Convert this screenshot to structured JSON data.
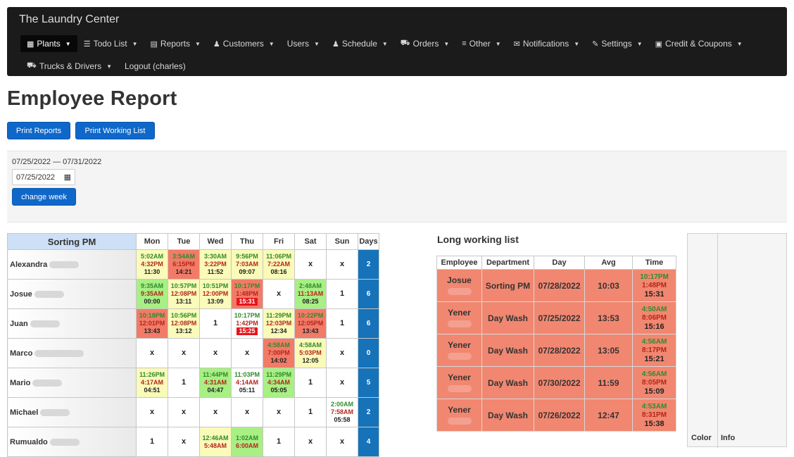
{
  "app": {
    "brand": "The Laundry Center"
  },
  "nav": {
    "row1": [
      {
        "label": "Plants",
        "icon": "▦",
        "active": true
      },
      {
        "label": "Todo List",
        "icon": "☰"
      },
      {
        "label": "Reports",
        "icon": "▤"
      },
      {
        "label": "Customers",
        "icon": "♟"
      },
      {
        "label": "Users",
        "icon": ""
      },
      {
        "label": "Schedule",
        "icon": "♟"
      },
      {
        "label": "Orders",
        "icon": "⛟"
      },
      {
        "label": "Other",
        "icon": "≡"
      },
      {
        "label": "Notifications",
        "icon": "✉"
      },
      {
        "label": "Settings",
        "icon": "✎"
      },
      {
        "label": "Credit & Coupons",
        "icon": "▣"
      }
    ],
    "row2": [
      {
        "label": "Trucks & Drivers",
        "icon": "⛟"
      },
      {
        "label": "Logout (charles)",
        "icon": ""
      }
    ]
  },
  "page": {
    "title": "Employee Report",
    "print_reports": "Print Reports",
    "print_working_list": "Print Working List",
    "date_range": "07/25/2022 — 07/31/2022",
    "date_value": "07/25/2022",
    "change_week": "change week"
  },
  "employee_table": {
    "department": "Sorting PM",
    "headers": [
      "Mon",
      "Tue",
      "Wed",
      "Thu",
      "Fri",
      "Sat",
      "Sun",
      "Days"
    ],
    "rows": [
      {
        "name": "Alexandra",
        "days": [
          {
            "c": "y",
            "in": "5:02AM",
            "out": "4:32PM",
            "dur": "11:30"
          },
          {
            "c": "r",
            "in": "3:54AM",
            "out": "6:15PM",
            "dur": "14:21"
          },
          {
            "c": "y",
            "in": "3:30AM",
            "out": "3:22PM",
            "dur": "11:52"
          },
          {
            "c": "y",
            "in": "9:56PM",
            "out": "7:03AM",
            "dur": "09:07"
          },
          {
            "c": "y",
            "in": "11:06PM",
            "out": "7:22AM",
            "dur": "08:16"
          },
          {
            "x": "x"
          },
          {
            "x": "x"
          }
        ],
        "total": "2"
      },
      {
        "name": "Josue",
        "days": [
          {
            "c": "g",
            "in": "9:35AM",
            "out": "9:35AM",
            "dur": "00:00"
          },
          {
            "c": "y",
            "in": "10:57PM",
            "out": "12:08PM",
            "dur": "13:11"
          },
          {
            "c": "y",
            "in": "10:51PM",
            "out": "12:00PM",
            "dur": "13:09"
          },
          {
            "c": "r",
            "in": "10:17PM",
            "out": "1:48PM",
            "dur": "15:31",
            "hot": true
          },
          {
            "x": "x"
          },
          {
            "c": "g",
            "in": "2:48AM",
            "out": "11:13AM",
            "dur": "08:25"
          },
          {
            "x": "1"
          }
        ],
        "total": "6"
      },
      {
        "name": "Juan",
        "days": [
          {
            "c": "r",
            "in": "10:18PM",
            "out": "12:01PM",
            "dur": "13:43"
          },
          {
            "c": "y",
            "in": "10:56PM",
            "out": "12:08PM",
            "dur": "13:12"
          },
          {
            "x": "1"
          },
          {
            "c": "w",
            "in": "10:17PM",
            "out": "1:42PM",
            "dur": "15:25",
            "hot": true
          },
          {
            "c": "y",
            "in": "11:29PM",
            "out": "12:03PM",
            "dur": "12:34"
          },
          {
            "c": "r",
            "in": "10:22PM",
            "out": "12:05PM",
            "dur": "13:43"
          },
          {
            "x": "1"
          }
        ],
        "total": "6"
      },
      {
        "name": "Marco",
        "days": [
          {
            "x": "x"
          },
          {
            "x": "x"
          },
          {
            "x": "x"
          },
          {
            "x": "x"
          },
          {
            "c": "r",
            "in": "4:58AM",
            "out": "7:00PM",
            "dur": "14:02"
          },
          {
            "c": "y",
            "in": "4:58AM",
            "out": "5:03PM",
            "dur": "12:05"
          },
          {
            "x": "x"
          }
        ],
        "total": "0"
      },
      {
        "name": "Mario",
        "days": [
          {
            "c": "y",
            "in": "11:26PM",
            "out": "4:17AM",
            "dur": "04:51"
          },
          {
            "x": "1"
          },
          {
            "c": "g",
            "in": "11:44PM",
            "out": "4:31AM",
            "dur": "04:47"
          },
          {
            "c": "w",
            "in": "11:03PM",
            "out": "4:14AM",
            "dur": "05:11"
          },
          {
            "c": "g",
            "in": "11:29PM",
            "out": "4:34AM",
            "dur": "05:05"
          },
          {
            "x": "1"
          },
          {
            "x": "x"
          }
        ],
        "total": "5"
      },
      {
        "name": "Michael",
        "days": [
          {
            "x": "x"
          },
          {
            "x": "x"
          },
          {
            "x": "x"
          },
          {
            "x": "x"
          },
          {
            "x": "x"
          },
          {
            "x": "1"
          },
          {
            "c": "w",
            "in": "2:00AM",
            "out": "7:58AM",
            "dur": "05:58"
          }
        ],
        "total": "2"
      },
      {
        "name": "Rumualdo",
        "days": [
          {
            "x": "1"
          },
          {
            "x": "x"
          },
          {
            "c": "y",
            "in": "12:46AM",
            "out": "5:48AM",
            "dur": ""
          },
          {
            "c": "g",
            "in": "1:02AM",
            "out": "6:00AM",
            "dur": ""
          },
          {
            "x": "1"
          },
          {
            "x": "x"
          },
          {
            "x": "x"
          }
        ],
        "total": "4"
      }
    ]
  },
  "long_working": {
    "title": "Long working list",
    "headers": [
      "Employee",
      "Department",
      "Day",
      "Avg",
      "Time"
    ],
    "rows": [
      {
        "employee": "Josue",
        "department": "Sorting PM",
        "day": "07/28/2022",
        "avg": "10:03",
        "in": "10:17PM",
        "out": "1:48PM",
        "dur": "15:31"
      },
      {
        "employee": "Yener",
        "department": "Day Wash",
        "day": "07/25/2022",
        "avg": "13:53",
        "in": "4:50AM",
        "out": "8:06PM",
        "dur": "15:16"
      },
      {
        "employee": "Yener",
        "department": "Day Wash",
        "day": "07/28/2022",
        "avg": "13:05",
        "in": "4:56AM",
        "out": "8:17PM",
        "dur": "15:21"
      },
      {
        "employee": "Yener",
        "department": "Day Wash",
        "day": "07/30/2022",
        "avg": "11:59",
        "in": "4:56AM",
        "out": "8:05PM",
        "dur": "15:09"
      },
      {
        "employee": "Yener",
        "department": "Day Wash",
        "day": "07/26/2022",
        "avg": "12:47",
        "in": "4:53AM",
        "out": "8:31PM",
        "dur": "15:38"
      }
    ]
  },
  "side": {
    "color_label": "Color",
    "info_label": "Info"
  }
}
